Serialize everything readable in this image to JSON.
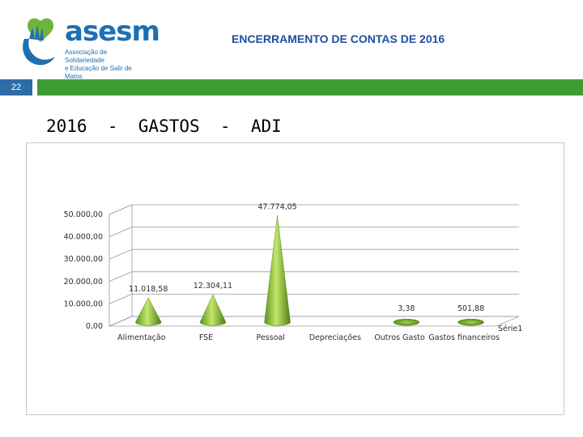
{
  "header": {
    "logo_word": "asesm",
    "logo_sub_line1": "Associação de Solidariedade",
    "logo_sub_line2": "e Educação de Salir de Matos",
    "doc_title": "ENCERRAMENTO DE CONTAS DE 2016",
    "page_number": "22"
  },
  "slide_title": "2016  -  GASTOS  -  ADI",
  "colors": {
    "brand_blue": "#1e6fb3",
    "band_green": "#3f9c35",
    "page_box": "#2e6ca8",
    "cone_green": "#8fc23a"
  },
  "chart_data": {
    "type": "bar",
    "style": "3d-cone",
    "categories": [
      "Alimentação",
      "FSE",
      "Pessoal",
      "Depreciações",
      "Outros Gasto",
      "Gastos financeiros"
    ],
    "values": [
      11018.58,
      12304.11,
      47774.05,
      0,
      3.38,
      501.88
    ],
    "data_labels": [
      "11.018,58",
      "12.304,11",
      "47.774,05",
      "",
      "3,38",
      "501,88"
    ],
    "series": [
      {
        "name": "Série1",
        "values": [
          11018.58,
          12304.11,
          47774.05,
          0,
          3.38,
          501.88
        ]
      }
    ],
    "ytick_labels": [
      "0,00",
      "10.000,00",
      "20.000,00",
      "30.000,00",
      "40.000,00",
      "50.000,00"
    ],
    "yticks": [
      0,
      10000,
      20000,
      30000,
      40000,
      50000
    ],
    "ylim": [
      0,
      50000
    ],
    "grid": true,
    "legend_position": "right"
  }
}
